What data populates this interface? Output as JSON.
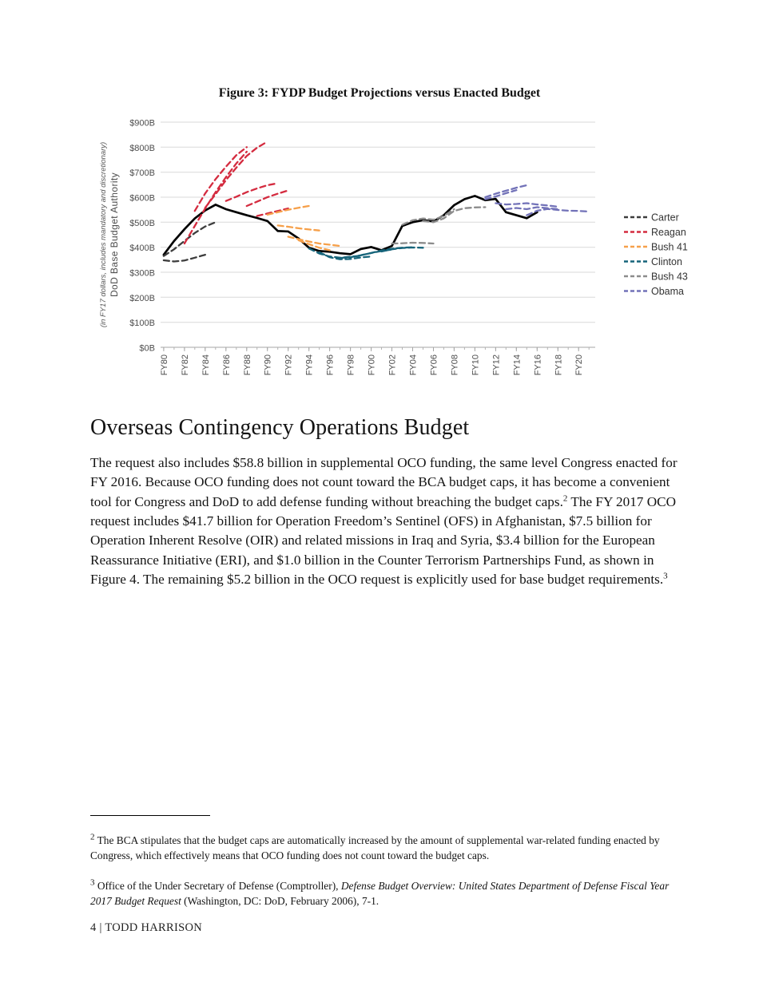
{
  "figure": {
    "title": "Figure 3: FYDP Budget Projections versus Enacted Budget"
  },
  "chart_data": {
    "type": "line",
    "title": "Figure 3: FYDP Budget Projections versus Enacted Budget",
    "ylabel": "DoD Base Budget Authority",
    "ylabel_note": "(in FY17 dollars, includes mandatory and discretionary)",
    "xlabel": "",
    "ylim": [
      0,
      900
    ],
    "x_range": [
      1979.7,
      2021.6
    ],
    "grid": "horizontal",
    "legend_position": "right",
    "y_ticks": [
      {
        "value": 0,
        "label": "$0B"
      },
      {
        "value": 100,
        "label": "$100B"
      },
      {
        "value": 200,
        "label": "$200B"
      },
      {
        "value": 300,
        "label": "$300B"
      },
      {
        "value": 400,
        "label": "$400B"
      },
      {
        "value": 500,
        "label": "$500B"
      },
      {
        "value": 600,
        "label": "$600B"
      },
      {
        "value": 700,
        "label": "$700B"
      },
      {
        "value": 800,
        "label": "$800B"
      },
      {
        "value": 900,
        "label": "$900B"
      }
    ],
    "x_ticks": [
      {
        "year": 1980,
        "label": "FY80"
      },
      {
        "year": 1982,
        "label": "FY82"
      },
      {
        "year": 1984,
        "label": "FY84"
      },
      {
        "year": 1986,
        "label": "FY86"
      },
      {
        "year": 1988,
        "label": "FY88"
      },
      {
        "year": 1990,
        "label": "FY90"
      },
      {
        "year": 1992,
        "label": "FY92"
      },
      {
        "year": 1994,
        "label": "FY94"
      },
      {
        "year": 1996,
        "label": "FY96"
      },
      {
        "year": 1998,
        "label": "FY98"
      },
      {
        "year": 2000,
        "label": "FY00"
      },
      {
        "year": 2002,
        "label": "FY02"
      },
      {
        "year": 2004,
        "label": "FY04"
      },
      {
        "year": 2006,
        "label": "FY06"
      },
      {
        "year": 2008,
        "label": "FY08"
      },
      {
        "year": 2010,
        "label": "FY10"
      },
      {
        "year": 2012,
        "label": "FY12"
      },
      {
        "year": 2014,
        "label": "FY14"
      },
      {
        "year": 2016,
        "label": "FY16"
      },
      {
        "year": 2018,
        "label": "FY18"
      },
      {
        "year": 2020,
        "label": "FY20"
      }
    ],
    "legend": [
      {
        "label": "Carter",
        "color": "#3d3d3d"
      },
      {
        "label": "Reagan",
        "color": "#d42b3f"
      },
      {
        "label": "Bush 41",
        "color": "#f6a04a"
      },
      {
        "label": "Clinton",
        "color": "#16647a"
      },
      {
        "label": "Bush 43",
        "color": "#8c8c8c"
      },
      {
        "label": "Obama",
        "color": "#7272b8"
      }
    ],
    "series": [
      {
        "name": "Enacted",
        "color": "#000000",
        "style": "solid",
        "points": [
          [
            1980,
            370
          ],
          [
            1981,
            425
          ],
          [
            1982,
            472
          ],
          [
            1983,
            515
          ],
          [
            1984,
            547
          ],
          [
            1985,
            570
          ],
          [
            1986,
            552
          ],
          [
            1987,
            540
          ],
          [
            1988,
            528
          ],
          [
            1989,
            517
          ],
          [
            1990,
            505
          ],
          [
            1991,
            465
          ],
          [
            1992,
            463
          ],
          [
            1993,
            435
          ],
          [
            1994,
            398
          ],
          [
            1995,
            385
          ],
          [
            1996,
            382
          ],
          [
            1997,
            376
          ],
          [
            1998,
            372
          ],
          [
            1999,
            393
          ],
          [
            2000,
            401
          ],
          [
            2001,
            388
          ],
          [
            2002,
            405
          ],
          [
            2003,
            485
          ],
          [
            2004,
            500
          ],
          [
            2005,
            508
          ],
          [
            2006,
            503
          ],
          [
            2007,
            528
          ],
          [
            2008,
            568
          ],
          [
            2009,
            592
          ],
          [
            2010,
            605
          ],
          [
            2011,
            588
          ],
          [
            2012,
            593
          ],
          [
            2013,
            540
          ],
          [
            2014,
            528
          ],
          [
            2015,
            516
          ],
          [
            2016,
            540
          ]
        ]
      },
      {
        "name": "Carter",
        "color": "#3d3d3d",
        "style": "dashed",
        "points": [
          [
            1980,
            348
          ],
          [
            1981,
            343
          ],
          [
            1982,
            347
          ],
          [
            1983,
            358
          ],
          [
            1984,
            370
          ]
        ]
      },
      {
        "name": "Carter",
        "color": "#3d3d3d",
        "style": "dashed",
        "points": [
          [
            1980,
            365
          ],
          [
            1981,
            392
          ],
          [
            1982,
            425
          ],
          [
            1983,
            457
          ],
          [
            1984,
            483
          ],
          [
            1985,
            500
          ]
        ]
      },
      {
        "name": "Reagan",
        "color": "#d42b3f",
        "style": "dashed",
        "points": [
          [
            1982,
            415
          ],
          [
            1983,
            485
          ],
          [
            1984,
            555
          ],
          [
            1985,
            620
          ],
          [
            1986,
            680
          ],
          [
            1987,
            735
          ],
          [
            1988,
            782
          ]
        ]
      },
      {
        "name": "Reagan",
        "color": "#d42b3f",
        "style": "dashed",
        "points": [
          [
            1983,
            545
          ],
          [
            1984,
            615
          ],
          [
            1985,
            672
          ],
          [
            1986,
            722
          ],
          [
            1987,
            768
          ],
          [
            1988,
            800
          ]
        ]
      },
      {
        "name": "Reagan",
        "color": "#d42b3f",
        "style": "dashed",
        "points": [
          [
            1984,
            558
          ],
          [
            1985,
            612
          ],
          [
            1986,
            668
          ],
          [
            1987,
            718
          ],
          [
            1988,
            765
          ],
          [
            1989,
            798
          ],
          [
            1990,
            822
          ]
        ]
      },
      {
        "name": "Reagan",
        "color": "#d42b3f",
        "style": "dashed",
        "points": [
          [
            1986,
            585
          ],
          [
            1987,
            602
          ],
          [
            1988,
            620
          ],
          [
            1989,
            635
          ],
          [
            1990,
            648
          ],
          [
            1991,
            656
          ]
        ]
      },
      {
        "name": "Reagan",
        "color": "#d42b3f",
        "style": "dashed",
        "points": [
          [
            1988,
            565
          ],
          [
            1989,
            582
          ],
          [
            1990,
            600
          ],
          [
            1991,
            614
          ],
          [
            1992,
            627
          ]
        ]
      },
      {
        "name": "Reagan",
        "color": "#d42b3f",
        "style": "dashed",
        "points": [
          [
            1989,
            525
          ],
          [
            1990,
            535
          ],
          [
            1991,
            545
          ],
          [
            1992,
            555
          ]
        ]
      },
      {
        "name": "Bush 41",
        "color": "#f6a04a",
        "style": "dashed",
        "points": [
          [
            1990,
            530
          ],
          [
            1991,
            540
          ],
          [
            1992,
            550
          ],
          [
            1993,
            558
          ],
          [
            1994,
            565
          ]
        ]
      },
      {
        "name": "Bush 41",
        "color": "#f6a04a",
        "style": "dashed",
        "points": [
          [
            1991,
            487
          ],
          [
            1992,
            482
          ],
          [
            1993,
            476
          ],
          [
            1994,
            471
          ],
          [
            1995,
            467
          ]
        ]
      },
      {
        "name": "Bush 41",
        "color": "#f6a04a",
        "style": "dashed",
        "points": [
          [
            1992,
            442
          ],
          [
            1993,
            432
          ],
          [
            1994,
            423
          ],
          [
            1995,
            415
          ],
          [
            1996,
            410
          ],
          [
            1997,
            405
          ]
        ]
      },
      {
        "name": "Bush 41",
        "color": "#f6a04a",
        "style": "dashed",
        "points": [
          [
            1993,
            428
          ],
          [
            1994,
            412
          ],
          [
            1995,
            398
          ],
          [
            1996,
            388
          ]
        ]
      },
      {
        "name": "Clinton",
        "color": "#16647a",
        "style": "dashed",
        "points": [
          [
            1994,
            395
          ],
          [
            1995,
            375
          ],
          [
            1996,
            363
          ],
          [
            1997,
            358
          ],
          [
            1998,
            362
          ],
          [
            1999,
            366
          ]
        ]
      },
      {
        "name": "Clinton",
        "color": "#16647a",
        "style": "dashed",
        "points": [
          [
            1995,
            380
          ],
          [
            1996,
            360
          ],
          [
            1997,
            352
          ],
          [
            1998,
            353
          ],
          [
            1999,
            359
          ],
          [
            2000,
            363
          ]
        ]
      },
      {
        "name": "Clinton",
        "color": "#16647a",
        "style": "dashed",
        "points": [
          [
            1997,
            357
          ],
          [
            1998,
            360
          ],
          [
            1999,
            368
          ],
          [
            2000,
            377
          ],
          [
            2001,
            385
          ],
          [
            2002,
            391
          ]
        ]
      },
      {
        "name": "Clinton",
        "color": "#16647a",
        "style": "dashed",
        "points": [
          [
            1999,
            368
          ],
          [
            2000,
            377
          ],
          [
            2001,
            387
          ],
          [
            2002,
            394
          ],
          [
            2003,
            398
          ],
          [
            2004,
            400
          ]
        ]
      },
      {
        "name": "Clinton",
        "color": "#16647a",
        "style": "dashed",
        "points": [
          [
            2001,
            383
          ],
          [
            2002,
            392
          ],
          [
            2003,
            397
          ],
          [
            2004,
            399
          ],
          [
            2005,
            398
          ]
        ]
      },
      {
        "name": "Bush 43",
        "color": "#8c8c8c",
        "style": "dashed",
        "points": [
          [
            2002,
            415
          ],
          [
            2003,
            416
          ],
          [
            2004,
            418
          ],
          [
            2005,
            417
          ],
          [
            2006,
            415
          ]
        ]
      },
      {
        "name": "Bush 43",
        "color": "#8c8c8c",
        "style": "dashed",
        "points": [
          [
            2003,
            490
          ],
          [
            2004,
            508
          ],
          [
            2005,
            515
          ],
          [
            2006,
            510
          ],
          [
            2007,
            525
          ],
          [
            2008,
            552
          ]
        ]
      },
      {
        "name": "Bush 43",
        "color": "#8c8c8c",
        "style": "dashed",
        "points": [
          [
            2005,
            505
          ],
          [
            2006,
            500
          ],
          [
            2007,
            515
          ],
          [
            2008,
            545
          ],
          [
            2009,
            556
          ],
          [
            2010,
            559
          ],
          [
            2011,
            560
          ]
        ]
      },
      {
        "name": "Obama",
        "color": "#7272b8",
        "style": "dashed",
        "points": [
          [
            2011,
            600
          ],
          [
            2012,
            614
          ],
          [
            2013,
            626
          ],
          [
            2014,
            638
          ],
          [
            2015,
            648
          ]
        ]
      },
      {
        "name": "Obama",
        "color": "#7272b8",
        "style": "dashed",
        "points": [
          [
            2011,
            592
          ],
          [
            2012,
            603
          ],
          [
            2013,
            616
          ],
          [
            2014,
            628
          ]
        ]
      },
      {
        "name": "Obama",
        "color": "#7272b8",
        "style": "dashed",
        "points": [
          [
            2012,
            576
          ],
          [
            2013,
            571
          ],
          [
            2014,
            573
          ],
          [
            2015,
            576
          ],
          [
            2016,
            571
          ],
          [
            2017,
            567
          ],
          [
            2018,
            562
          ]
        ]
      },
      {
        "name": "Obama",
        "color": "#7272b8",
        "style": "dashed",
        "points": [
          [
            2013,
            552
          ],
          [
            2014,
            557
          ],
          [
            2015,
            552
          ],
          [
            2016,
            560
          ],
          [
            2017,
            556
          ],
          [
            2018,
            552
          ]
        ]
      },
      {
        "name": "Obama",
        "color": "#7272b8",
        "style": "dashed",
        "points": [
          [
            2015,
            528
          ],
          [
            2016,
            546
          ],
          [
            2017,
            553
          ],
          [
            2018,
            549
          ],
          [
            2019,
            546
          ],
          [
            2020,
            545
          ],
          [
            2021,
            543
          ]
        ]
      }
    ]
  },
  "section": {
    "heading": "Overseas Contingency Operations Budget",
    "para": {
      "part1": "The request also includes $58.8 billion in supplemental OCO funding, the same level Congress enacted for FY 2016. Because OCO funding does not count toward the BCA budget caps, it has become a convenient tool for Congress and DoD to add defense funding without breaching the budget caps.",
      "ref1": "2",
      "part2": " The FY 2017 OCO request includes $41.7 billion for Operation Freedom’s Sentinel (OFS) in Afghanistan, $7.5 billion for Operation Inherent Resolve (OIR) and related missions in Iraq and Syria, $3.4 billion for the European Reassurance Initiative (ERI), and $1.0 billion in the Counter Terrorism Partnerships Fund, as shown in Figure 4. The remaining $5.2 billion in the OCO request is explicitly used for base budget requirements.",
      "ref2": "3"
    }
  },
  "footnotes": {
    "fn2": {
      "marker": "2",
      "text": " The BCA stipulates that the budget caps are automatically increased by the amount of supplemental war-related funding enacted by Congress, which effectively means that OCO funding does not count toward the budget caps."
    },
    "fn3": {
      "marker": "3",
      "pre": " Office of the Under Secretary of Defense (Comptroller), ",
      "italic": "Defense Budget Overview: United States Department of Defense Fiscal Year 2017 Budget Request",
      "post": " (Washington, DC: DoD, February 2006), 7-1."
    }
  },
  "footer": {
    "text": "4 | TODD HARRISON"
  }
}
